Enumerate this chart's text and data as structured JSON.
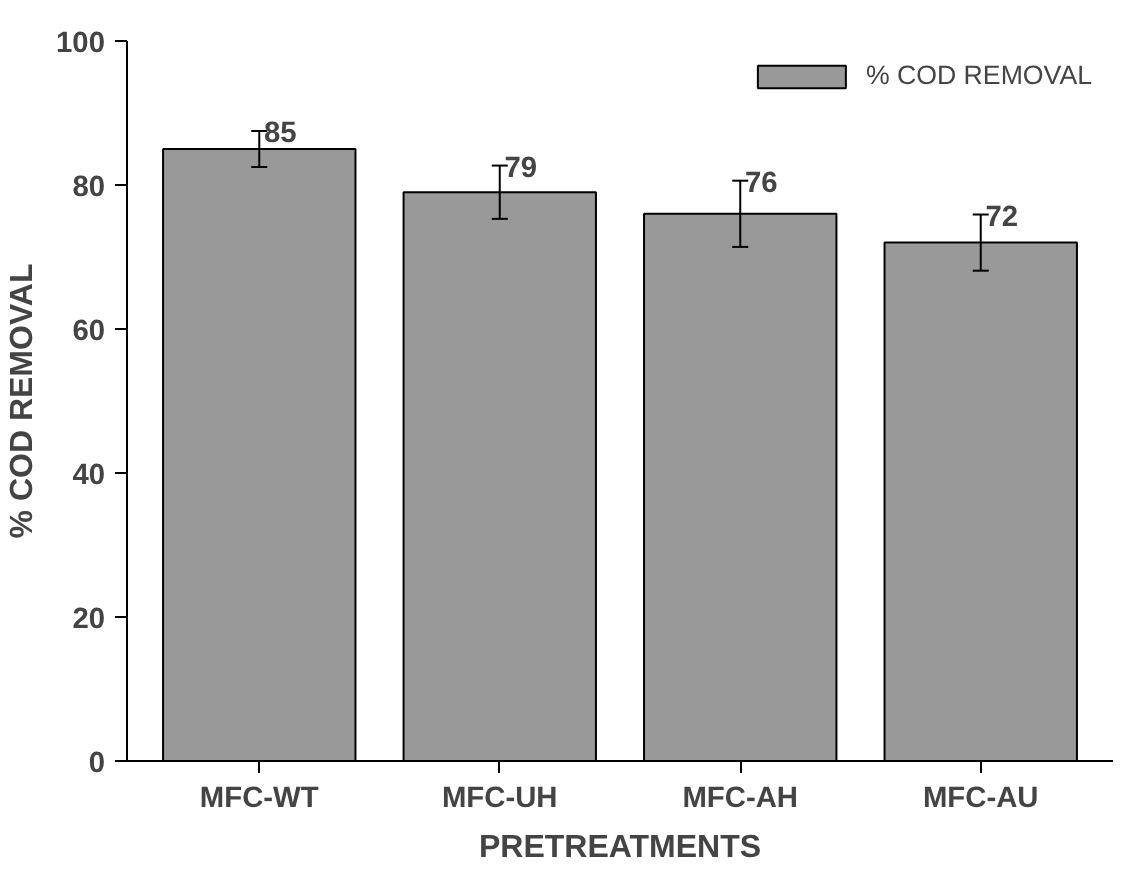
{
  "chart_data": {
    "type": "bar",
    "xlabel": "PRETREATMENTS",
    "ylabel": "% COD REMOVAL",
    "categories": [
      "MFC-WT",
      "MFC-UH",
      "MFC-AH",
      "MFC-AU"
    ],
    "series": [
      {
        "name": "% COD REMOVAL",
        "color": "#999999",
        "values": [
          85,
          79,
          76,
          72
        ],
        "errors": [
          2.5,
          3.7,
          4.6,
          3.9
        ]
      }
    ],
    "data_labels": true,
    "ylim": [
      0,
      100
    ],
    "yticks": [
      0,
      20,
      40,
      60,
      80,
      100
    ],
    "grid": false,
    "legend": "top right"
  }
}
